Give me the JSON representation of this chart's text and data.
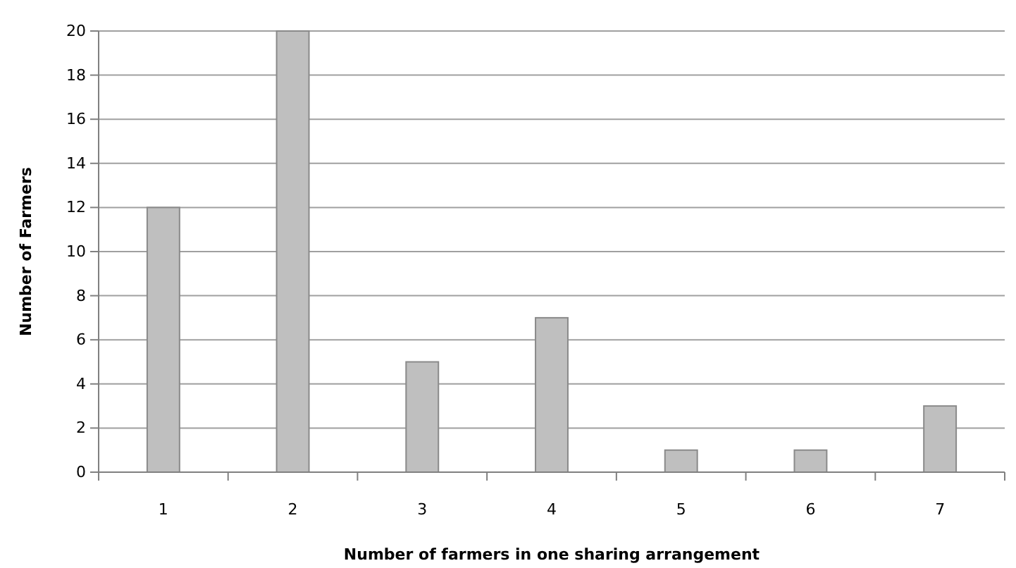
{
  "chart_data": {
    "type": "bar",
    "xlabel": "Number of farmers in one  sharing arrangement",
    "ylabel": "Number of Farmers",
    "categories": [
      "1",
      "2",
      "3",
      "4",
      "5",
      "6",
      "7"
    ],
    "values": [
      12,
      20,
      5,
      7,
      1,
      1,
      3
    ],
    "color": "#bfbfbf",
    "ylim": [
      0,
      20
    ],
    "yticks": [
      0,
      2,
      4,
      6,
      8,
      10,
      12,
      14,
      16,
      18,
      20
    ],
    "grid": "y"
  }
}
